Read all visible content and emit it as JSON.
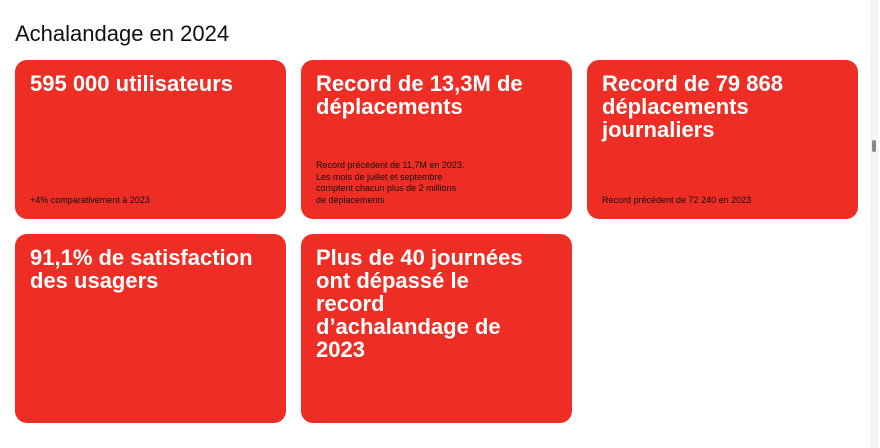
{
  "header": {
    "title": "Achalandage en 2024"
  },
  "cards": [
    {
      "headline_lines": [
        "595 000 utilisateurs"
      ],
      "note_lines": [
        "+4% comparativement à 2023"
      ]
    },
    {
      "headline_lines": [
        "Record de 13,3M de",
        "déplacements"
      ],
      "note_lines": [
        "Record précédent de 11,7M en 2023.",
        "Les mois de juillet et septembre",
        "comptent chacun plus de 2 millions",
        "de déplacements"
      ]
    },
    {
      "headline_lines": [
        "Record de 79 868",
        "déplacements",
        "journaliers"
      ],
      "note_lines": [
        "Record précédent de 72 240 en 2023"
      ]
    },
    {
      "headline_lines": [
        "91,1% de satisfaction",
        "des usagers"
      ]
    },
    {
      "headline_lines": [
        "Plus de 40 journées",
        "ont dépassé le",
        "record",
        "d’achalandage de",
        "2023"
      ]
    }
  ]
}
